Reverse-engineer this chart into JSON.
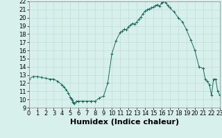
{
  "title": "",
  "xlabel": "Humidex (Indice chaleur)",
  "ylabel": "",
  "xlim": [
    0,
    23
  ],
  "ylim": [
    9,
    22
  ],
  "yticks": [
    9,
    10,
    11,
    12,
    13,
    14,
    15,
    16,
    17,
    18,
    19,
    20,
    21,
    22
  ],
  "xticks": [
    0,
    1,
    2,
    3,
    4,
    5,
    6,
    7,
    8,
    9,
    10,
    11,
    12,
    13,
    14,
    15,
    16,
    17,
    18,
    19,
    20,
    21,
    22,
    23
  ],
  "line_color": "#1a6b5a",
  "marker_color": "#1a6b5a",
  "bg_color": "#d8f0ec",
  "grid_color": "#c0dcd8",
  "x": [
    0,
    0.5,
    1,
    1.5,
    2,
    2.5,
    3,
    3.5,
    4,
    4.25,
    4.5,
    4.75,
    5,
    5.1,
    5.2,
    5.3,
    5.4,
    5.5,
    5.75,
    6,
    6.5,
    7,
    7.5,
    8,
    8.5,
    9,
    9.5,
    10,
    10.5,
    11,
    11.25,
    11.5,
    11.75,
    12,
    12.25,
    12.5,
    12.75,
    13,
    13.25,
    13.5,
    13.75,
    14,
    14.25,
    14.5,
    14.75,
    15,
    15.25,
    15.5,
    15.75,
    16,
    16.1,
    16.2,
    16.5,
    16.75,
    17,
    17.5,
    18,
    18.5,
    19,
    19.5,
    20,
    20.5,
    21,
    21.25,
    21.5,
    21.75,
    22,
    22.25,
    22.5,
    22.75,
    23
  ],
  "y": [
    12.5,
    12.8,
    12.8,
    12.7,
    12.6,
    12.5,
    12.5,
    12.2,
    11.8,
    11.5,
    11.2,
    10.8,
    10.3,
    10.1,
    9.9,
    9.7,
    9.6,
    9.5,
    9.8,
    9.8,
    9.8,
    9.8,
    9.8,
    9.8,
    10.2,
    10.4,
    12.0,
    15.6,
    17.2,
    18.2,
    18.4,
    18.6,
    18.5,
    18.9,
    19.1,
    19.3,
    19.2,
    19.5,
    19.8,
    20.1,
    20.5,
    20.8,
    21.0,
    21.1,
    21.2,
    21.3,
    21.5,
    21.6,
    21.4,
    21.8,
    21.9,
    22.1,
    21.8,
    21.5,
    21.2,
    20.7,
    20.0,
    19.5,
    18.5,
    17.3,
    16.0,
    14.0,
    13.8,
    12.5,
    12.2,
    11.8,
    10.5,
    12.5,
    12.5,
    11.0,
    10.5
  ],
  "tick_fontsize": 6,
  "xlabel_fontsize": 8,
  "marker_size": 2.5,
  "linewidth": 0.7
}
